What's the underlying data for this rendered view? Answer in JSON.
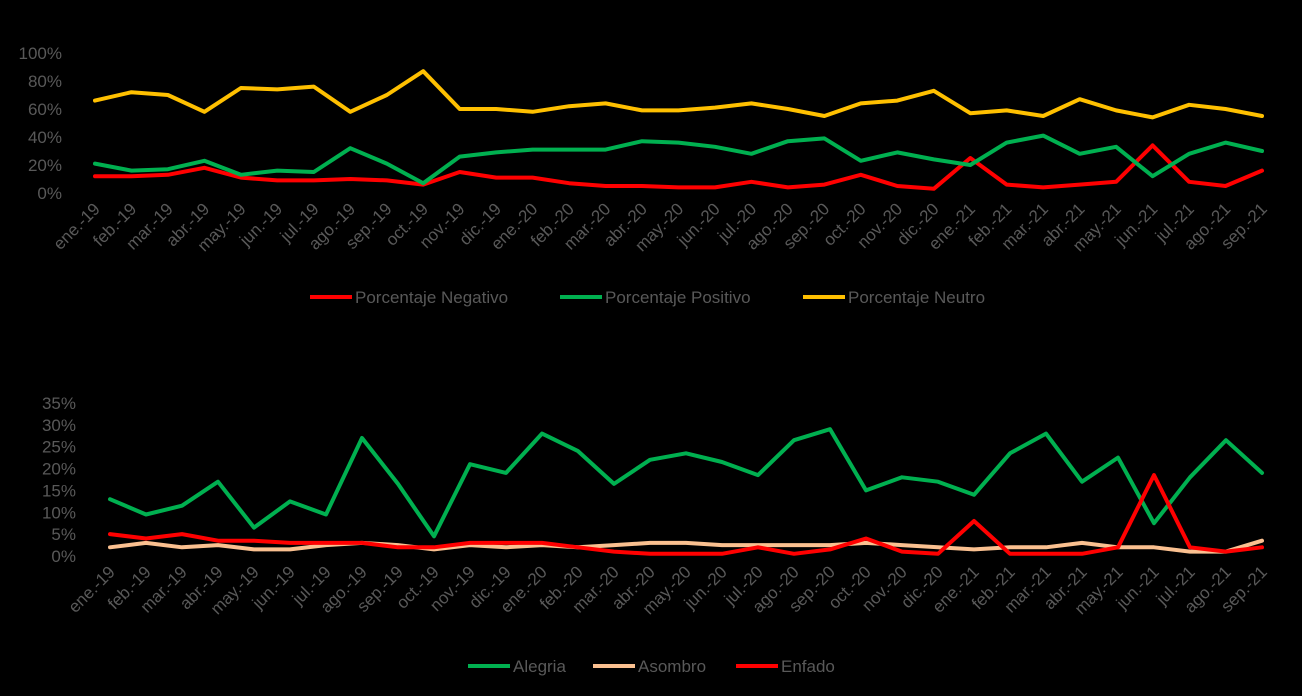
{
  "chart_data": [
    {
      "type": "line",
      "categories": [
        "ene.-19",
        "feb.-19",
        "mar.-19",
        "abr.-19",
        "may.-19",
        "jun.-19",
        "jul.-19",
        "ago.-19",
        "sep.-19",
        "oct.-19",
        "nov.-19",
        "dic.-19",
        "ene.-20",
        "feb.-20",
        "mar.-20",
        "abr.-20",
        "may.-20",
        "jun.-20",
        "jul.-20",
        "ago.-20",
        "sep.-20",
        "oct.-20",
        "nov.-20",
        "dic.-20",
        "ene.-21",
        "feb.-21",
        "mar.-21",
        "abr.-21",
        "may.-21",
        "jun.-21",
        "jul.-21",
        "ago.-21",
        "sep.-21"
      ],
      "yticks": [
        "0%",
        "20%",
        "40%",
        "60%",
        "80%",
        "100%"
      ],
      "ylim": [
        0,
        100
      ],
      "y_unit": "%",
      "grid": false,
      "legend_position": "bottom",
      "series": [
        {
          "name": "Porcentaje Negativo",
          "color": "#FF0000",
          "values": [
            12,
            12,
            13,
            18,
            11,
            9,
            9,
            10,
            9,
            6,
            15,
            11,
            11,
            7,
            5,
            5,
            4,
            4,
            8,
            4,
            6,
            13,
            5,
            3,
            25,
            6,
            4,
            6,
            8,
            34,
            8,
            5,
            16
          ]
        },
        {
          "name": "Porcentaje Positivo",
          "color": "#00B050",
          "values": [
            21,
            16,
            17,
            23,
            13,
            16,
            15,
            32,
            21,
            7,
            26,
            29,
            31,
            31,
            31,
            37,
            36,
            33,
            28,
            37,
            39,
            23,
            29,
            24,
            20,
            36,
            41,
            28,
            33,
            12,
            28,
            36,
            30
          ]
        },
        {
          "name": "Porcentaje Neutro",
          "color": "#FFC000",
          "values": [
            66,
            72,
            70,
            58,
            75,
            74,
            76,
            58,
            70,
            87,
            60,
            60,
            58,
            62,
            64,
            59,
            59,
            61,
            64,
            60,
            55,
            64,
            66,
            73,
            57,
            59,
            55,
            67,
            59,
            54,
            63,
            60,
            55
          ]
        }
      ]
    },
    {
      "type": "line",
      "categories": [
        "ene.-19",
        "feb.-19",
        "mar.-19",
        "abr.-19",
        "may.-19",
        "jun.-19",
        "jul.-19",
        "ago.-19",
        "sep.-19",
        "oct.-19",
        "nov.-19",
        "dic.-19",
        "ene.-20",
        "feb.-20",
        "mar.-20",
        "abr.-20",
        "may.-20",
        "jun.-20",
        "jul.-20",
        "ago.-20",
        "sep.-20",
        "oct.-20",
        "nov.-20",
        "dic.-20",
        "ene.-21",
        "feb.-21",
        "mar.-21",
        "abr.-21",
        "may.-21",
        "jun.-21",
        "jul.-21",
        "ago.-21",
        "sep.-21"
      ],
      "yticks": [
        "0%",
        "5%",
        "10%",
        "15%",
        "20%",
        "25%",
        "30%",
        "35%"
      ],
      "ylim": [
        0,
        35
      ],
      "y_unit": "%",
      "grid": false,
      "legend_position": "bottom",
      "series": [
        {
          "name": "Alegria",
          "color": "#00B050",
          "values": [
            13,
            9.5,
            11.5,
            17,
            6.5,
            12.5,
            9.5,
            27,
            16.5,
            4.5,
            21,
            19,
            28,
            24,
            16.5,
            22,
            23.5,
            21.5,
            18.5,
            26.5,
            29,
            15,
            18,
            17,
            14,
            23.5,
            28,
            17,
            22.5,
            7.5,
            18,
            26.5,
            19
          ]
        },
        {
          "name": "Asombro",
          "color": "#FAC090",
          "values": [
            2,
            3,
            2,
            2.5,
            1.5,
            1.5,
            2.5,
            3,
            2.5,
            1.5,
            2.5,
            2,
            2.5,
            2,
            2.5,
            3,
            3,
            2.5,
            2.5,
            2.5,
            2.5,
            3,
            2.5,
            2,
            1.5,
            2,
            2,
            3,
            2,
            2,
            1,
            1,
            3.5
          ]
        },
        {
          "name": "Enfado",
          "color": "#FF0000",
          "values": [
            5,
            4,
            5,
            3.5,
            3.5,
            3,
            3,
            3,
            2,
            2,
            3,
            3,
            3,
            2,
            1,
            0.5,
            0.5,
            0.5,
            2,
            0.5,
            1.5,
            4,
            1,
            0.5,
            8,
            0.5,
            0.5,
            0.5,
            2,
            18.5,
            2,
            1,
            2
          ]
        }
      ]
    }
  ]
}
